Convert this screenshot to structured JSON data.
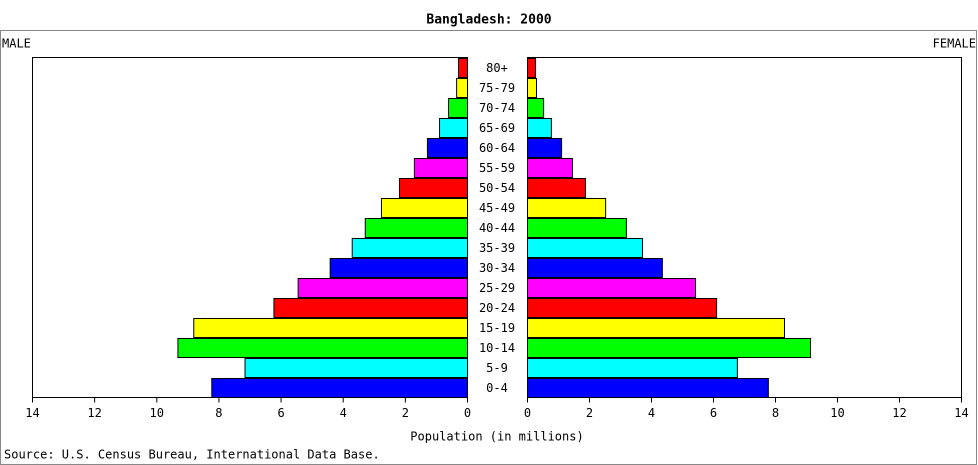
{
  "chart_data": {
    "type": "pyramid",
    "title": "Bangladesh: 2000",
    "categories": [
      "80+",
      "75-79",
      "70-74",
      "65-69",
      "60-64",
      "55-59",
      "50-54",
      "45-49",
      "40-44",
      "35-39",
      "30-34",
      "25-29",
      "20-24",
      "15-19",
      "10-14",
      "5-9",
      "0-4"
    ],
    "colors": [
      "#ff0000",
      "#ffff00",
      "#00ff00",
      "#00ffff",
      "#0000ff",
      "#ff00ff",
      "#ff0000",
      "#ffff00",
      "#00ff00",
      "#00ffff",
      "#0000ff",
      "#ff00ff",
      "#ff0000",
      "#ffff00",
      "#00ff00",
      "#00ffff",
      "#0000ff"
    ],
    "series": [
      {
        "name": "MALE",
        "values": [
          0.29,
          0.35,
          0.61,
          0.9,
          1.29,
          1.71,
          2.19,
          2.77,
          3.29,
          3.71,
          4.42,
          5.45,
          6.23,
          8.81,
          9.32,
          7.16,
          8.23
        ]
      },
      {
        "name": "FEMALE",
        "values": [
          0.26,
          0.29,
          0.52,
          0.77,
          1.1,
          1.45,
          1.87,
          2.52,
          3.19,
          3.71,
          4.35,
          5.42,
          6.1,
          8.29,
          9.13,
          6.77,
          7.77
        ]
      }
    ],
    "xlim": [
      0,
      14
    ],
    "xticks": [
      0,
      2,
      4,
      6,
      8,
      10,
      12,
      14
    ],
    "xlabel": "Population (in millions)",
    "source": "Source: U.S. Census Bureau, International Data Base."
  }
}
